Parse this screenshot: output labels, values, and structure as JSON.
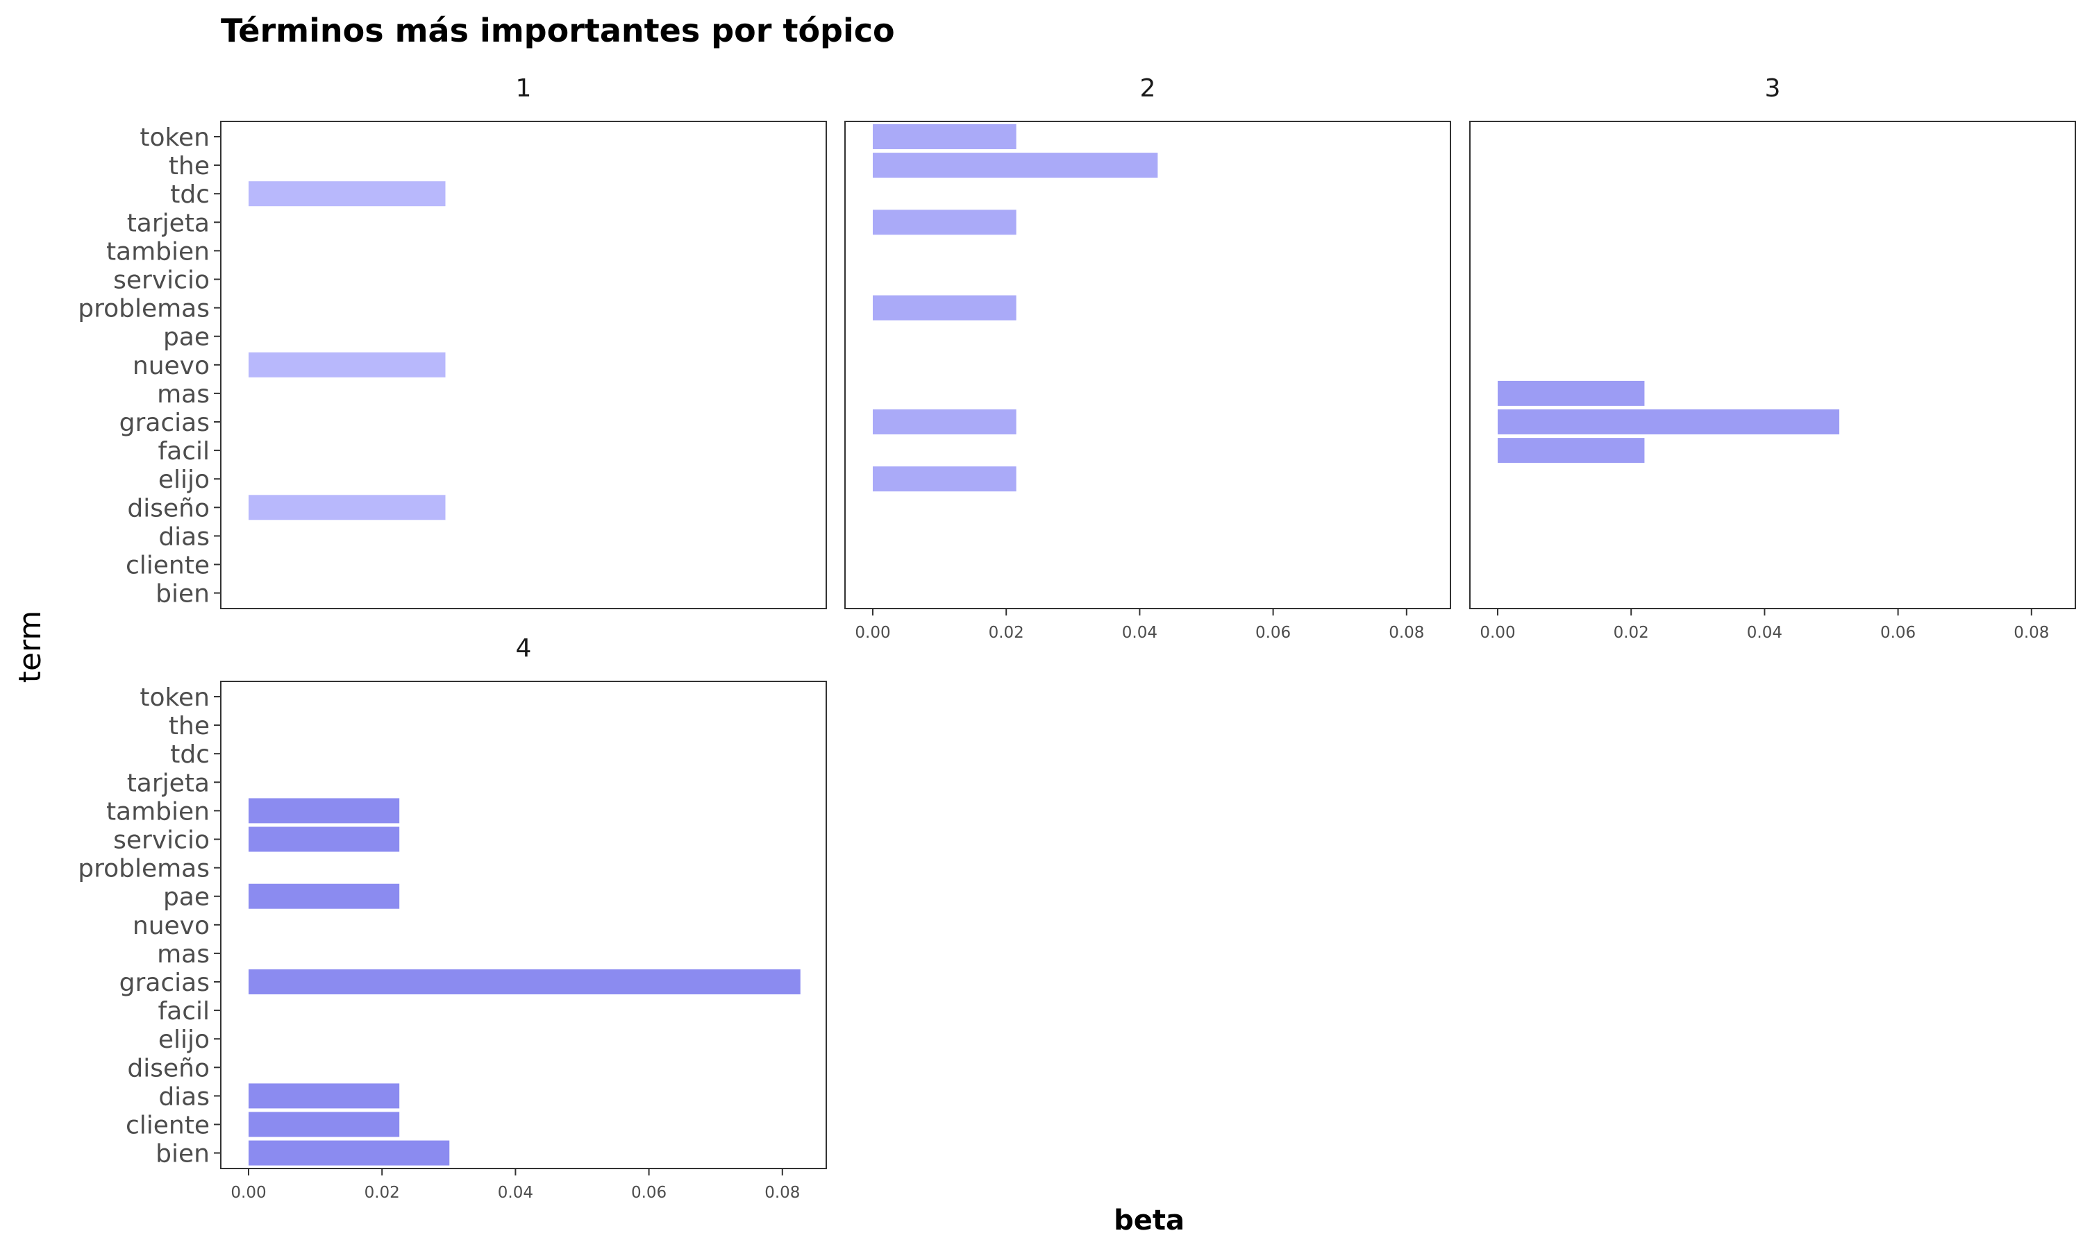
{
  "chart_data": {
    "type": "bar",
    "orientation": "horizontal",
    "title": "Términos más importantes por tópico",
    "xlabel": "beta",
    "ylabel": "term",
    "xlim": [
      0,
      0.087
    ],
    "x_ticks": [
      "0.00",
      "0.02",
      "0.04",
      "0.06",
      "0.08"
    ],
    "x_tick_values": [
      0,
      0.02,
      0.04,
      0.06,
      0.08
    ],
    "grid": false,
    "terms": [
      "token",
      "the",
      "tdc",
      "tarjeta",
      "tambien",
      "servicio",
      "problemas",
      "pae",
      "nuevo",
      "mas",
      "gracias",
      "facil",
      "elijo",
      "diseño",
      "dias",
      "cliente",
      "bien"
    ],
    "panels": [
      {
        "label": "1",
        "color": "#b8b8fc",
        "bars": [
          {
            "term": "tdc",
            "value": 0.0295
          },
          {
            "term": "nuevo",
            "value": 0.0295
          },
          {
            "term": "diseño",
            "value": 0.0295
          }
        ]
      },
      {
        "label": "2",
        "color": "#aaaaf8",
        "bars": [
          {
            "term": "token",
            "value": 0.0215
          },
          {
            "term": "the",
            "value": 0.0427
          },
          {
            "term": "tarjeta",
            "value": 0.0215
          },
          {
            "term": "problemas",
            "value": 0.0215
          },
          {
            "term": "gracias",
            "value": 0.0215
          },
          {
            "term": "elijo",
            "value": 0.0215
          }
        ]
      },
      {
        "label": "3",
        "color": "#9c9cf4",
        "bars": [
          {
            "term": "mas",
            "value": 0.022
          },
          {
            "term": "gracias",
            "value": 0.0512
          },
          {
            "term": "facil",
            "value": 0.022
          }
        ]
      },
      {
        "label": "4",
        "color": "#8b8bf0",
        "bars": [
          {
            "term": "tambien",
            "value": 0.0226
          },
          {
            "term": "servicio",
            "value": 0.0226
          },
          {
            "term": "pae",
            "value": 0.0226
          },
          {
            "term": "gracias",
            "value": 0.0827
          },
          {
            "term": "dias",
            "value": 0.0226
          },
          {
            "term": "cliente",
            "value": 0.0226
          },
          {
            "term": "bien",
            "value": 0.0301
          }
        ]
      }
    ]
  }
}
